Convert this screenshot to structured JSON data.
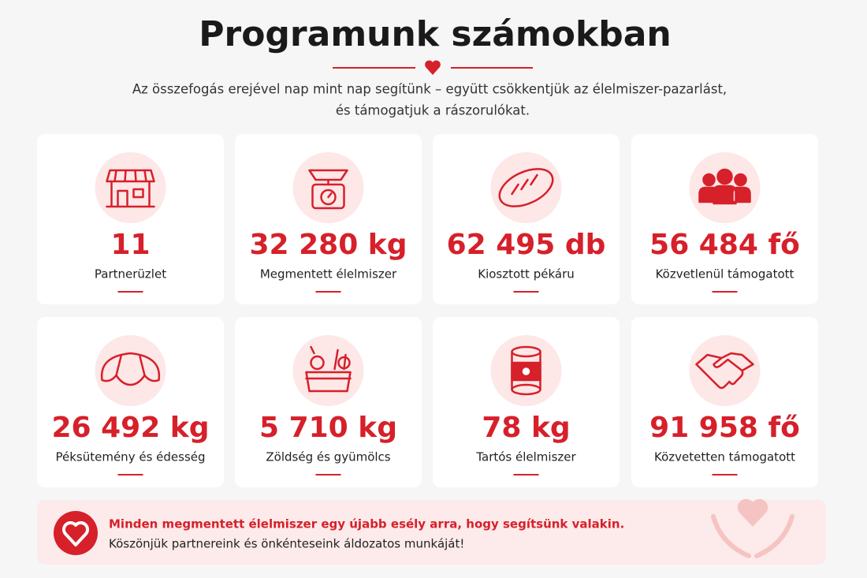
{
  "header": {
    "title": "Programunk számokban",
    "subtitle": [
      "Az összefogás erejével nap mint nap segítünk – együtt csökkentjük az élelmiszer-pazarlást,",
      "és támogatjuk a rászorulókat."
    ]
  },
  "stats": [
    {
      "value": "11",
      "label": "Partnerüzlet"
    },
    {
      "value": "32 280 kg",
      "label": "Megmentett élelmiszer"
    },
    {
      "value": "62 495 db",
      "label": "Kiosztott pékáru"
    },
    {
      "value": "56 484 fő",
      "label": "Közvetlenül támogatott"
    },
    {
      "value": "26 492 kg",
      "label": "Péksütemény és édesség"
    },
    {
      "value": "5 710 kg",
      "label": "Zöldség és gyümölcs"
    },
    {
      "value": "78 kg",
      "label": "Tartós élelmiszer"
    },
    {
      "value": "91 958 fő",
      "label": "Közvetetten támogatott"
    }
  ],
  "banner": {
    "headline": "Minden megmentett élelmiszer egy újabb esély arra, hogy segítsünk valakin.",
    "text": "Köszönjük partnereink és önkénteseink áldozatos munkáját!"
  }
}
